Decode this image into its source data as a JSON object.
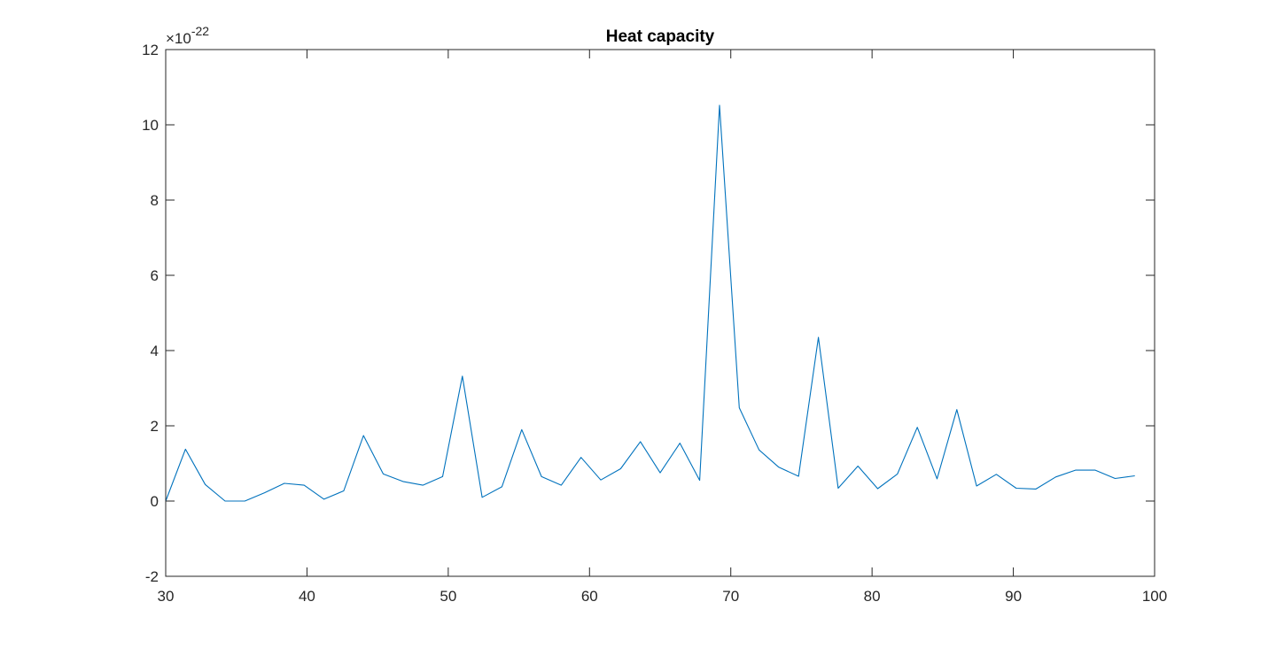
{
  "chart_data": {
    "type": "line",
    "title": "Heat capacity",
    "xlabel": "",
    "ylabel": "",
    "xlim": [
      30,
      100
    ],
    "ylim": [
      -2,
      12
    ],
    "xticks": [
      30,
      40,
      50,
      60,
      70,
      80,
      90,
      100
    ],
    "yticks": [
      -2,
      0,
      2,
      4,
      6,
      8,
      10,
      12
    ],
    "y_exponent": {
      "base": "×10",
      "power": "-22"
    },
    "grid": false,
    "series": [
      {
        "color": "#0072BD",
        "x": [
          30.0,
          31.4,
          32.8,
          34.2,
          35.6,
          37.0,
          38.4,
          39.8,
          41.2,
          42.6,
          44.0,
          45.4,
          46.8,
          48.2,
          49.6,
          51.0,
          52.4,
          53.8,
          55.2,
          56.6,
          58.0,
          59.4,
          60.8,
          62.2,
          63.6,
          65.0,
          66.4,
          67.8,
          69.2,
          70.6,
          72.0,
          73.4,
          74.8,
          76.2,
          77.6,
          79.0,
          80.4,
          81.8,
          83.2,
          84.6,
          86.0,
          87.4,
          88.8,
          90.2,
          91.6,
          93.0,
          94.4,
          95.8,
          97.2,
          98.6
        ],
        "y": [
          0.0,
          1.38,
          0.44,
          0.0,
          0.0,
          0.22,
          0.47,
          0.42,
          0.05,
          0.27,
          1.74,
          0.72,
          0.52,
          0.42,
          0.65,
          3.32,
          0.1,
          0.38,
          1.9,
          0.65,
          0.42,
          1.16,
          0.56,
          0.86,
          1.58,
          0.75,
          1.54,
          0.55,
          10.52,
          2.48,
          1.36,
          0.9,
          0.66,
          4.35,
          0.34,
          0.93,
          0.33,
          0.72,
          1.96,
          0.59,
          2.43,
          0.4,
          0.71,
          0.34,
          0.32,
          0.64,
          0.82,
          0.82,
          0.6,
          0.67
        ]
      }
    ]
  }
}
